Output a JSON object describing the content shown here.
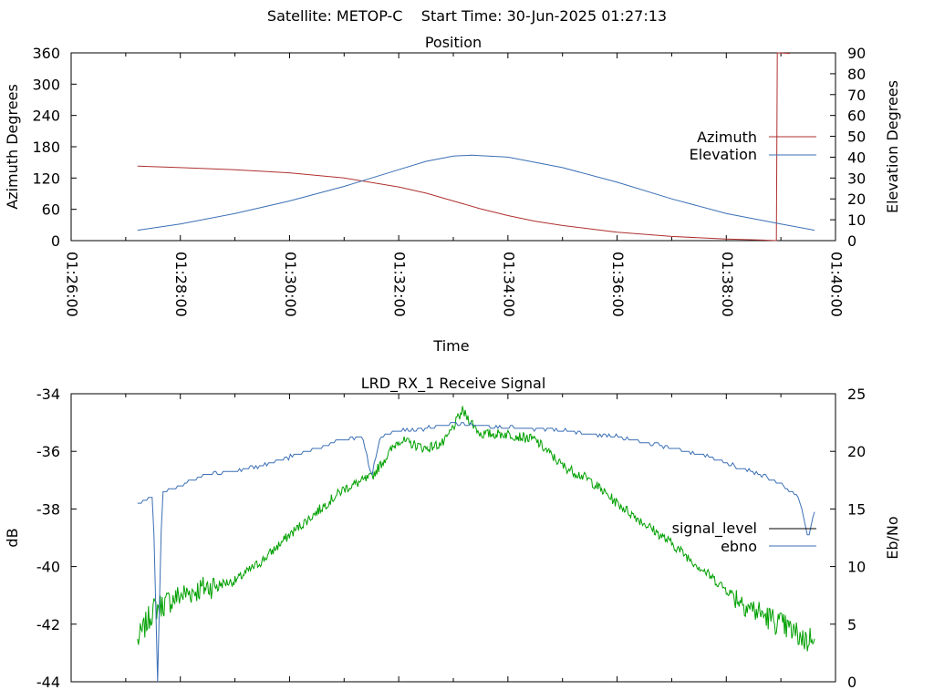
{
  "header": {
    "title": "Satellite: METOP-C    Start Time: 30-Jun-2025 01:27:13"
  },
  "colors": {
    "azimuth": "#b03030",
    "elevation": "#3a6fb5",
    "signal_level": "#00a000",
    "ebno": "#3a6fb5"
  },
  "chart_data": [
    {
      "type": "line",
      "title": "Position",
      "xlabel": "Time",
      "ylabel": "Azimuth Degrees",
      "y2label": "Elevation Degrees",
      "xlim": [
        "01:26:00",
        "01:40:00"
      ],
      "xticks": [
        "01:26:00",
        "01:28:00",
        "01:30:00",
        "01:32:00",
        "01:34:00",
        "01:36:00",
        "01:38:00",
        "01:40:00"
      ],
      "ylim": [
        0,
        360
      ],
      "yticks": [
        0,
        60,
        120,
        180,
        240,
        300,
        360
      ],
      "y2lim": [
        0,
        90
      ],
      "y2ticks": [
        0,
        10,
        20,
        30,
        40,
        50,
        60,
        70,
        80,
        90
      ],
      "grid": false,
      "legend": "right",
      "series": [
        {
          "name": "Azimuth",
          "axis": "y",
          "points": [
            [
              "01:27:13",
              143
            ],
            [
              "01:28:00",
              140
            ],
            [
              "01:29:00",
              136
            ],
            [
              "01:30:00",
              130
            ],
            [
              "01:31:00",
              120
            ],
            [
              "01:32:00",
              103
            ],
            [
              "01:32:30",
              91
            ],
            [
              "01:33:00",
              76
            ],
            [
              "01:33:30",
              61
            ],
            [
              "01:34:00",
              48
            ],
            [
              "01:34:30",
              37
            ],
            [
              "01:35:00",
              29
            ],
            [
              "01:36:00",
              16
            ],
            [
              "01:37:00",
              8
            ],
            [
              "01:38:00",
              3
            ],
            [
              "01:38:40",
              1
            ],
            [
              "01:38:55",
              0
            ],
            [
              "01:38:56",
              360
            ],
            [
              "01:39:10",
              359
            ]
          ]
        },
        {
          "name": "Elevation",
          "axis": "y2",
          "points": [
            [
              "01:27:13",
              5
            ],
            [
              "01:28:00",
              8
            ],
            [
              "01:29:00",
              13
            ],
            [
              "01:30:00",
              19
            ],
            [
              "01:31:00",
              26
            ],
            [
              "01:32:00",
              34
            ],
            [
              "01:32:30",
              38
            ],
            [
              "01:33:00",
              40.5
            ],
            [
              "01:33:20",
              41
            ],
            [
              "01:34:00",
              40
            ],
            [
              "01:35:00",
              35
            ],
            [
              "01:36:00",
              28
            ],
            [
              "01:37:00",
              20
            ],
            [
              "01:38:00",
              13
            ],
            [
              "01:39:00",
              8
            ],
            [
              "01:39:37",
              5
            ]
          ]
        }
      ]
    },
    {
      "type": "line",
      "title": "LRD_RX_1 Receive Signal",
      "xlabel": "",
      "ylabel": "dB",
      "y2label": "Eb/No",
      "xlim": [
        "01:26:00",
        "01:40:00"
      ],
      "ylim": [
        -44,
        -34
      ],
      "yticks": [
        -44,
        -42,
        -40,
        -38,
        -36,
        -34
      ],
      "y2lim": [
        0,
        25
      ],
      "y2ticks": [
        0,
        5,
        10,
        15,
        20,
        25
      ],
      "grid": false,
      "legend": "right",
      "series": [
        {
          "name": "signal_level",
          "axis": "y",
          "legend_color": "#000000",
          "points": [
            [
              "01:27:13",
              -42.6
            ],
            [
              "01:27:30",
              -41.5
            ],
            [
              "01:28:00",
              -41.0
            ],
            [
              "01:28:30",
              -40.7
            ],
            [
              "01:29:00",
              -40.5
            ],
            [
              "01:29:30",
              -39.8
            ],
            [
              "01:30:00",
              -38.9
            ],
            [
              "01:30:30",
              -38.1
            ],
            [
              "01:31:00",
              -37.3
            ],
            [
              "01:31:30",
              -36.9
            ],
            [
              "01:32:00",
              -35.6
            ],
            [
              "01:32:30",
              -35.9
            ],
            [
              "01:32:50",
              -35.7
            ],
            [
              "01:33:10",
              -34.6
            ],
            [
              "01:33:30",
              -35.4
            ],
            [
              "01:34:00",
              -35.4
            ],
            [
              "01:34:30",
              -35.6
            ],
            [
              "01:35:00",
              -36.5
            ],
            [
              "01:35:30",
              -37.0
            ],
            [
              "01:36:00",
              -37.8
            ],
            [
              "01:36:30",
              -38.5
            ],
            [
              "01:37:00",
              -39.2
            ],
            [
              "01:37:30",
              -40.0
            ],
            [
              "01:38:00",
              -40.8
            ],
            [
              "01:38:30",
              -41.5
            ],
            [
              "01:39:00",
              -42.0
            ],
            [
              "01:39:30",
              -42.6
            ],
            [
              "01:39:37",
              -42.2
            ]
          ]
        },
        {
          "name": "ebno",
          "axis": "y2",
          "points": [
            [
              "01:27:13",
              15.4
            ],
            [
              "01:27:30",
              16.2
            ],
            [
              "01:27:35",
              0
            ],
            [
              "01:27:40",
              16.5
            ],
            [
              "01:28:00",
              17.0
            ],
            [
              "01:28:30",
              18.0
            ],
            [
              "01:29:00",
              18.3
            ],
            [
              "01:29:30",
              18.8
            ],
            [
              "01:30:00",
              19.5
            ],
            [
              "01:30:30",
              20.3
            ],
            [
              "01:31:00",
              21.0
            ],
            [
              "01:31:20",
              21.3
            ],
            [
              "01:31:30",
              17.8
            ],
            [
              "01:31:40",
              21.3
            ],
            [
              "01:32:00",
              21.8
            ],
            [
              "01:32:30",
              22.0
            ],
            [
              "01:33:00",
              22.4
            ],
            [
              "01:33:30",
              22.3
            ],
            [
              "01:34:00",
              22.1
            ],
            [
              "01:34:30",
              21.9
            ],
            [
              "01:35:00",
              21.8
            ],
            [
              "01:35:30",
              21.5
            ],
            [
              "01:36:00",
              21.3
            ],
            [
              "01:36:30",
              20.8
            ],
            [
              "01:37:00",
              20.3
            ],
            [
              "01:37:30",
              19.8
            ],
            [
              "01:38:00",
              19.0
            ],
            [
              "01:38:30",
              18.2
            ],
            [
              "01:39:00",
              17.2
            ],
            [
              "01:39:20",
              16.0
            ],
            [
              "01:39:30",
              12.5
            ],
            [
              "01:39:37",
              14.8
            ]
          ]
        }
      ]
    }
  ]
}
